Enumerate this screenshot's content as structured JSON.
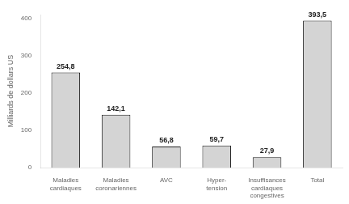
{
  "chart_data": {
    "type": "bar",
    "ylabel": "Milliards de dollars US",
    "categories": [
      "Maladies\ncardiaques",
      "Maladies\ncoronariennes",
      "AVC",
      "Hyper-\ntension",
      "Insuffisances\ncardiaques\ncongestives",
      "Total"
    ],
    "values": [
      254.8,
      142.1,
      56.8,
      59.7,
      27.9,
      393.5
    ],
    "value_labels": [
      "254,8",
      "142,1",
      "56,8",
      "59,7",
      "27,9",
      "393,5"
    ],
    "data_labels": true,
    "color": "#d4d4d4",
    "ylim": [
      0,
      410
    ],
    "yticks": [
      0,
      100,
      200,
      300,
      400
    ],
    "grid": false
  }
}
